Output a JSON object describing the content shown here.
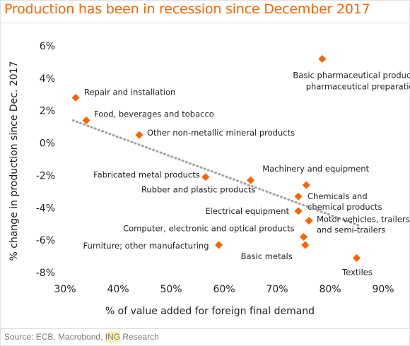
{
  "header": {
    "title": "Production has been in recession since December 2017"
  },
  "footer": {
    "source_prefix": "Source: ECB, Macrobond, ",
    "source_highlight": "ING",
    "source_suffix": " Research"
  },
  "colors": {
    "title": "#ff6200",
    "marker": "#ff6200",
    "trend": "#a6a6a6"
  },
  "chart_data": {
    "type": "scatter",
    "xlabel": "% of value added for foreign final demand",
    "ylabel": "% change in production since Dec. 2017",
    "xlim": [
      30,
      90
    ],
    "ylim": [
      -8,
      6
    ],
    "xticks": [
      30,
      40,
      50,
      60,
      70,
      80,
      90
    ],
    "yticks": [
      6,
      4,
      2,
      0,
      -2,
      -4,
      -6,
      -8
    ],
    "xtick_labels": [
      "30%",
      "40%",
      "50%",
      "60%",
      "70%",
      "80%",
      "90%"
    ],
    "ytick_labels": [
      "6%",
      "4%",
      "2%",
      "0%",
      "-2%",
      "-4%",
      "-6%",
      "-8%"
    ],
    "grid": false,
    "trendline": {
      "style": "dotted",
      "x": [
        31.5,
        85.5
      ],
      "y": [
        1.4,
        -5.1
      ]
    },
    "points": [
      {
        "label": [
          "Repair and installation"
        ],
        "x": 32,
        "y": 2.8
      },
      {
        "label": [
          "Food, beverages and tobacco"
        ],
        "x": 34,
        "y": 1.4
      },
      {
        "label": [
          "Other non-metallic mineral products"
        ],
        "x": 44,
        "y": 0.5
      },
      {
        "label": [
          "Fabricated metal products"
        ],
        "x": 56.5,
        "y": -2.1
      },
      {
        "label": [
          "Rubber and plastic products"
        ],
        "x": 65,
        "y": -2.3
      },
      {
        "label": [
          "Basic pharmaceutical products and",
          "pharmaceutical preparations"
        ],
        "x": 78.5,
        "y": 5.2
      },
      {
        "label": [
          "Machinery and equipment"
        ],
        "x": 75.5,
        "y": -2.6
      },
      {
        "label": [
          "Chemicals and",
          "chemical products"
        ],
        "x": 74,
        "y": -3.3
      },
      {
        "label": [
          "Electrical equipment"
        ],
        "x": 74,
        "y": -4.2
      },
      {
        "label": [
          "Motor vehicles, trailers",
          "and semi-trailers"
        ],
        "x": 76,
        "y": -4.8
      },
      {
        "label": [
          "Computer, electronic and optical products"
        ],
        "x": 75,
        "y": -5.8
      },
      {
        "label": [
          "Basic metals"
        ],
        "x": 75.3,
        "y": -6.3
      },
      {
        "label": [
          "Furniture; other manufacturing"
        ],
        "x": 59,
        "y": -6.3
      },
      {
        "label": [
          "Textiles"
        ],
        "x": 85,
        "y": -7.1
      }
    ]
  }
}
